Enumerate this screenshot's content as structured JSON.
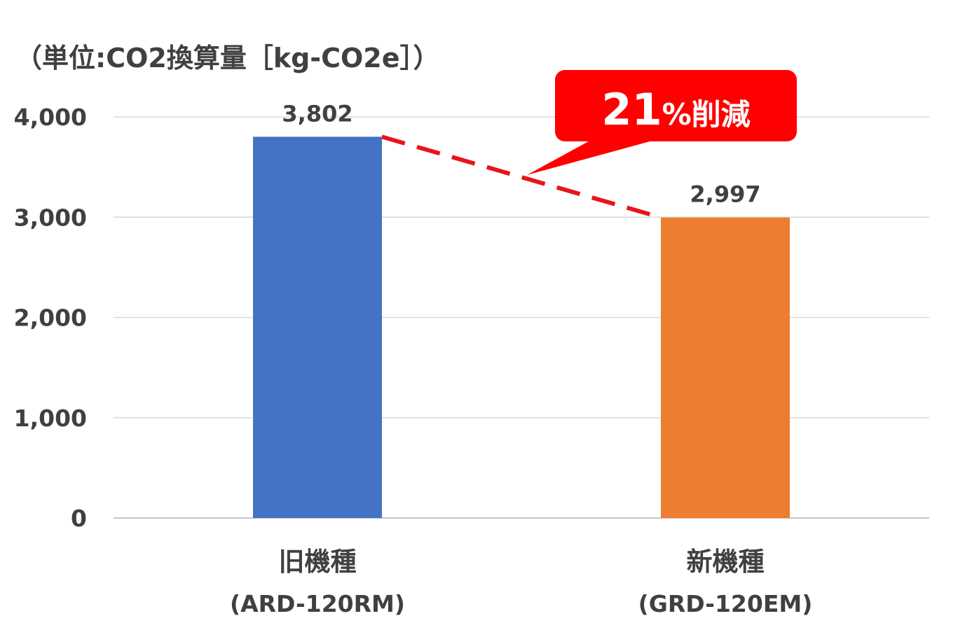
{
  "chart_data": {
    "type": "bar",
    "unit_label": "（単位:CO2換算量［kg-CO2e］）",
    "categories": [
      {
        "name": "旧機種",
        "model": "(ARD-120RM)"
      },
      {
        "name": "新機種",
        "model": "(GRD-120EM)"
      }
    ],
    "values": [
      3802,
      2997
    ],
    "data_labels": [
      "3,802",
      "2,997"
    ],
    "bar_colors": [
      "#4472c4",
      "#ed7d31"
    ],
    "ylim": [
      0,
      4000
    ],
    "yticks": [
      0,
      1000,
      2000,
      3000,
      4000
    ],
    "ytick_labels": [
      "0",
      "1,000",
      "2,000",
      "3,000",
      "4,000"
    ],
    "grid": true,
    "callout": {
      "number": "21",
      "suffix": "%削減",
      "color": "#ff0000"
    },
    "connector_color": "#e8141b"
  }
}
